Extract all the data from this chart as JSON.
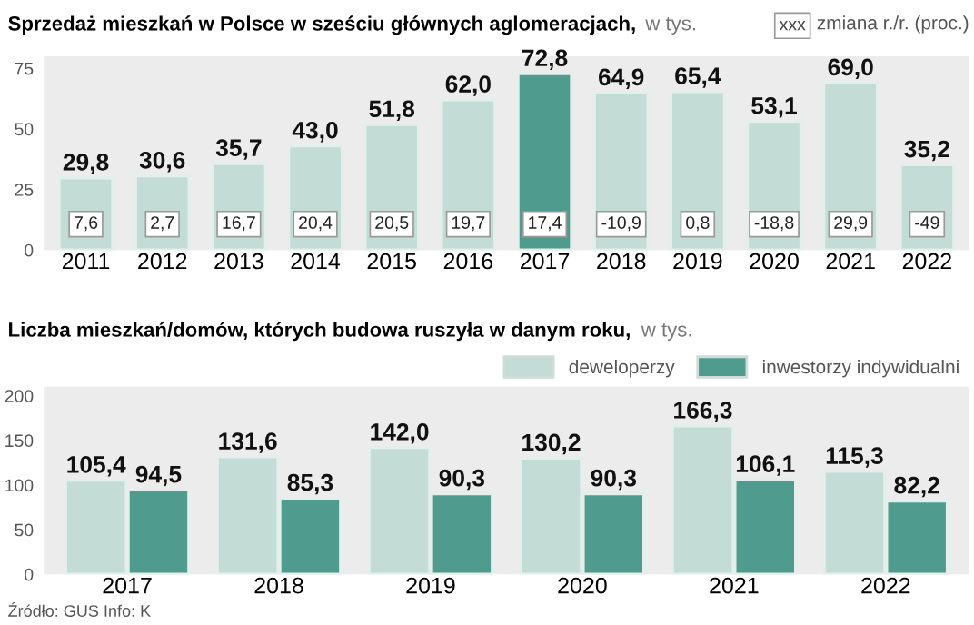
{
  "chart_data": [
    {
      "type": "bar",
      "title": "Sprzedaż mieszkań w Polsce w sześciu głównych aglomeracjach,",
      "subtitle": "w tys.",
      "legend_title": "zmiana r./r. (proc.)",
      "categories": [
        "2011",
        "2012",
        "2013",
        "2014",
        "2015",
        "2016",
        "2017",
        "2018",
        "2019",
        "2020",
        "2021",
        "2022"
      ],
      "values": [
        29.8,
        30.6,
        35.7,
        43.0,
        51.8,
        62.0,
        72.8,
        64.9,
        65.4,
        53.1,
        69.0,
        35.2
      ],
      "value_labels": [
        "29,8",
        "30,6",
        "35,7",
        "43,0",
        "51,8",
        "62,0",
        "72,8",
        "64,9",
        "65,4",
        "53,1",
        "69,0",
        "35,2"
      ],
      "colors": [
        "#c3dcd5",
        "#c3dcd5",
        "#c3dcd5",
        "#c3dcd5",
        "#c3dcd5",
        "#c3dcd5",
        "#4f9c8f",
        "#c3dcd5",
        "#c3dcd5",
        "#c3dcd5",
        "#c3dcd5",
        "#c3dcd5"
      ],
      "ylim": [
        0,
        80
      ],
      "yticks": [
        0,
        25,
        50,
        75
      ],
      "grid": false,
      "annotations": [
        "xxx",
        {
          "text": "7,6",
          "x": "2011",
          "y": 0
        },
        {
          "text": "2,7",
          "x": "2012",
          "y": 0
        },
        {
          "text": "16,7",
          "x": "2013",
          "y": 0
        },
        {
          "text": "20,4",
          "x": "2014",
          "y": 0
        },
        {
          "text": "20,5",
          "x": "2015",
          "y": 0
        },
        {
          "text": "19,7",
          "x": "2016",
          "y": 0
        },
        {
          "text": "17,4",
          "x": "2017",
          "y": 0
        },
        {
          "text": "-10,9",
          "x": "2018",
          "y": 0
        },
        {
          "text": "0,8",
          "x": "2019",
          "y": 0
        },
        {
          "text": "-18,8",
          "x": "2020",
          "y": 0
        },
        {
          "text": "29,9",
          "x": "2021",
          "y": 0
        },
        {
          "text": "-49",
          "x": "2022",
          "y": 0
        }
      ]
    },
    {
      "type": "bar",
      "title": "Liczba mieszkań/domów, których budowa ruszyła w danym roku,",
      "subtitle": "w tys.",
      "categories": [
        "2017",
        "2018",
        "2019",
        "2020",
        "2021",
        "2022"
      ],
      "series": [
        {
          "name": "deweloperzy",
          "color": "#c3dcd5",
          "values": [
            105.4,
            131.6,
            142.0,
            130.2,
            166.3,
            115.3
          ],
          "value_labels": [
            "105,4",
            "131,6",
            "142,0",
            "130,2",
            "166,3",
            "115,3"
          ]
        },
        {
          "name": "inwestorzy indywidualni",
          "color": "#4f9c8f",
          "values": [
            94.5,
            85.3,
            90.3,
            90.3,
            106.1,
            82.2
          ],
          "value_labels": [
            "94,5",
            "85,3",
            "90,3",
            "90,3",
            "106,1",
            "82,2"
          ]
        }
      ],
      "ylim": [
        0,
        210
      ],
      "yticks": [
        0,
        50,
        100,
        150,
        200
      ],
      "grid": false,
      "legend": "top right",
      "annotations": [
        "Źródło: GUS Info: K"
      ]
    }
  ]
}
